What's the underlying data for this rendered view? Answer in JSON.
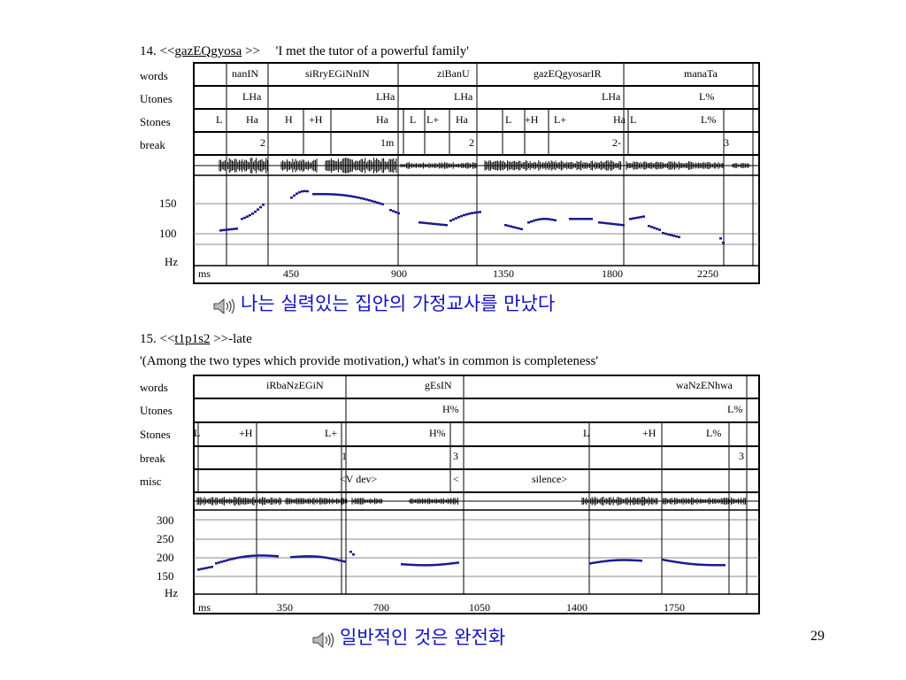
{
  "page_number": "29",
  "fig1": {
    "number": "14.",
    "open": "<<",
    "name": "gazEQgyosa",
    "close": ">>",
    "gloss": "'I met the tutor of a powerful family'",
    "rows": [
      "words",
      "Utones",
      "Stones",
      "break"
    ],
    "words": [
      "nanIN",
      "siRryEGiNnIN",
      "ziBanU",
      "gazEQgyosarIR",
      "manaTa"
    ],
    "utones": [
      "LHa",
      "LHa",
      "LHa",
      "LHa",
      "L%"
    ],
    "stones": [
      "L",
      "Ha",
      "H",
      "+H",
      "Ha",
      "L",
      "L+",
      "Ha",
      "L",
      "+H",
      "L+",
      "Ha",
      "L",
      "L%"
    ],
    "break": [
      "2",
      "1m",
      "2",
      "2-",
      "3"
    ],
    "y_ticks": [
      "150",
      "100",
      "Hz"
    ],
    "x_unit": "ms",
    "x_ticks": [
      "450",
      "900",
      "1350",
      "1800",
      "2250"
    ],
    "korean": "나는 실력있는 집안의 가정교사를 만났다"
  },
  "fig2": {
    "number": "15.",
    "open": "<<",
    "name": "t1p1s2",
    "close": ">>-late",
    "gloss": "'(Among the two types which provide motivation,) what's in common is completeness'",
    "rows": [
      "words",
      "Utones",
      "Stones",
      "break",
      "misc"
    ],
    "words": [
      "iRbaNzEGiN",
      "gEsIN",
      "waNzENhwa"
    ],
    "utones": [
      "H%",
      "L%"
    ],
    "stones": [
      "L",
      "+H",
      "L+",
      "H%",
      "L",
      "+H",
      "L%"
    ],
    "break": [
      "1",
      "3",
      "3"
    ],
    "misc": [
      "<V dev>",
      "<",
      "silence>"
    ],
    "y_ticks": [
      "300",
      "250",
      "200",
      "150",
      "Hz"
    ],
    "x_unit": "ms",
    "x_ticks": [
      "350",
      "700",
      "1050",
      "1400",
      "1750"
    ],
    "korean": "일반적인 것은 완전화"
  }
}
